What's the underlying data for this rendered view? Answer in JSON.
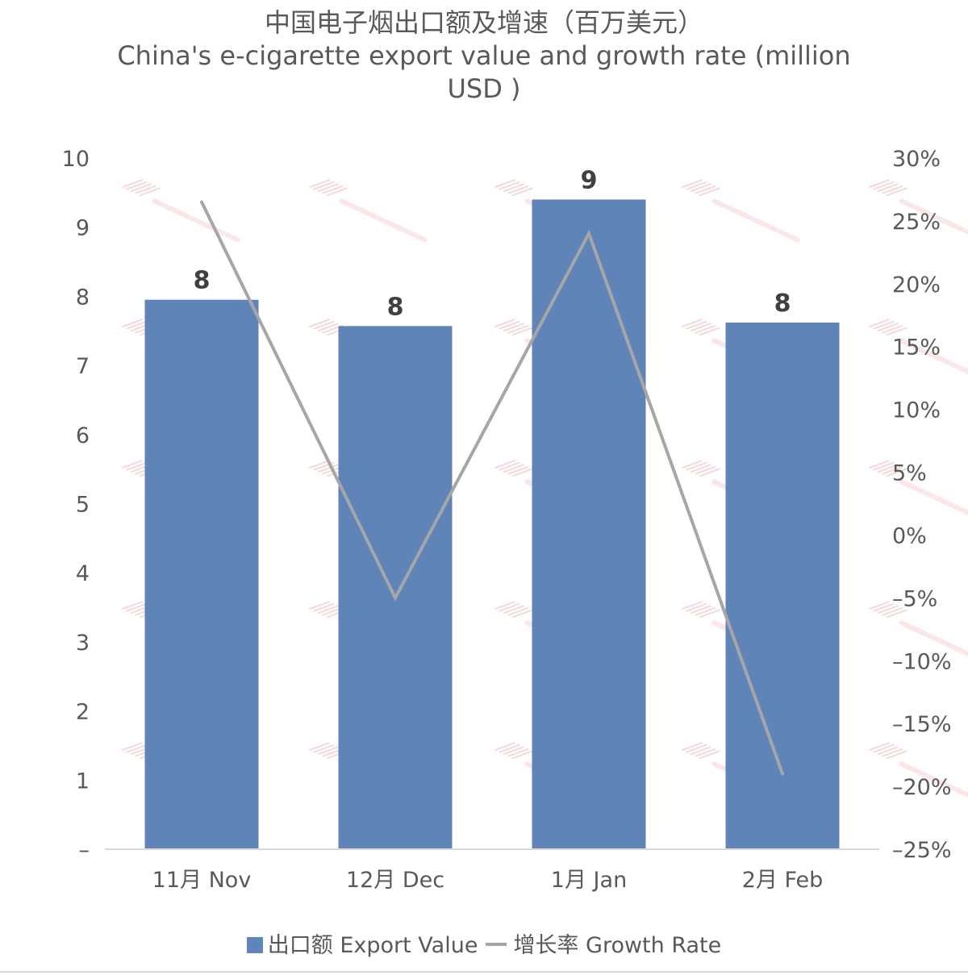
{
  "chart_data": {
    "type": "bar",
    "title": "中国电子烟出口额及增速（百万美元）",
    "subtitle": "China's e-cigarette export value and growth rate (million USD )",
    "categories": [
      "11月 Nov",
      "12月 Dec",
      "1月 Jan",
      "2月 Feb"
    ],
    "series": [
      {
        "name": "出口额 Export Value",
        "type": "bar",
        "axis": "left",
        "color": "#5f85b8",
        "values": [
          7.95,
          7.57,
          9.4,
          7.62
        ],
        "data_labels": [
          "8",
          "8",
          "9",
          "8"
        ]
      },
      {
        "name": "增长率 Growth Rate",
        "type": "line",
        "axis": "right",
        "color": "#a6a6a6",
        "values": [
          26.5,
          -5.0,
          24.0,
          -19.0
        ]
      }
    ],
    "y_left": {
      "min": 0,
      "max": 10,
      "ticks": [
        "–",
        "1",
        "2",
        "3",
        "4",
        "5",
        "6",
        "7",
        "8",
        "9",
        "10"
      ]
    },
    "y_right": {
      "min": -25,
      "max": 30,
      "ticks": [
        "–25%",
        "–20%",
        "–15%",
        "–10%",
        "–5%",
        "0%",
        "5%",
        "10%",
        "15%",
        "20%",
        "25%",
        "30%"
      ]
    },
    "legend": {
      "position": "bottom",
      "bar_label": "出口额 Export Value",
      "line_label": "增长率 Growth Rate"
    },
    "grid": false
  }
}
